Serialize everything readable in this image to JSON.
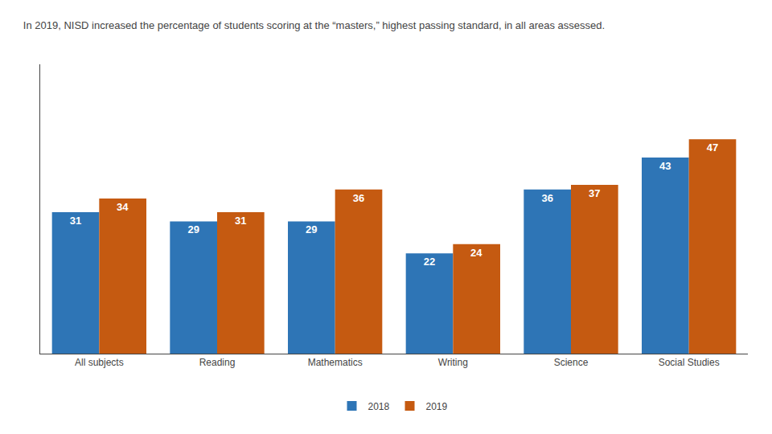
{
  "chart_data": {
    "type": "bar",
    "title": "In 2019, NISD increased the percentage of students scoring at the “masters,” highest passing standard, in all areas assessed.",
    "categories": [
      "All subjects",
      "Reading",
      "Mathematics",
      "Writing",
      "Science",
      "Social Studies"
    ],
    "series": [
      {
        "name": "2018",
        "color": "#2E75B6",
        "values": [
          31,
          29,
          29,
          22,
          36,
          43
        ]
      },
      {
        "name": "2019",
        "color": "#C55A11",
        "values": [
          34,
          31,
          36,
          24,
          37,
          47
        ]
      }
    ],
    "ylim": [
      0,
      63.45
    ],
    "grid": false,
    "legend": "bottom",
    "data_labels": true,
    "tick_labels": "x"
  }
}
